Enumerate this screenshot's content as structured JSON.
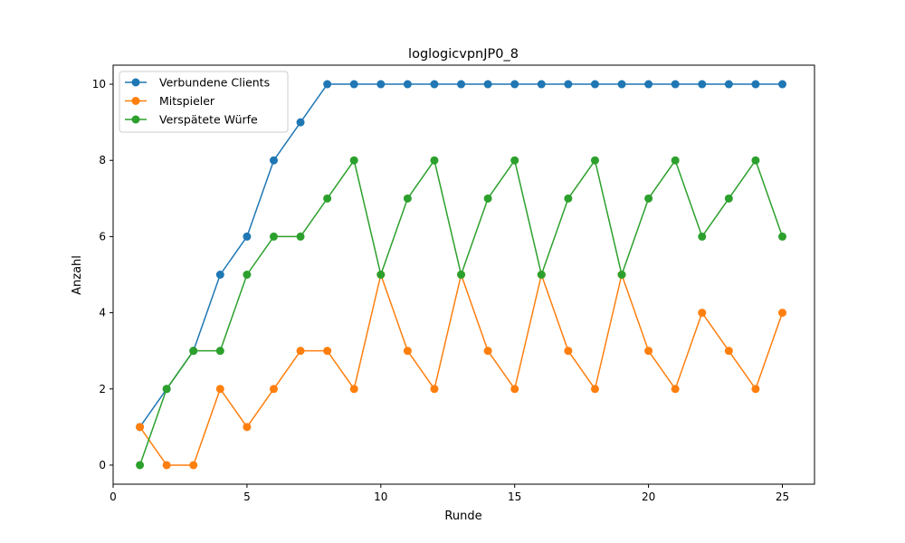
{
  "chart_data": {
    "type": "line",
    "title": "loglogicvpnJP0_8",
    "xlabel": "Runde",
    "ylabel": "Anzahl",
    "x": [
      1,
      2,
      3,
      4,
      5,
      6,
      7,
      8,
      9,
      10,
      11,
      12,
      13,
      14,
      15,
      16,
      17,
      18,
      19,
      20,
      21,
      22,
      23,
      24,
      25
    ],
    "xlim": [
      0,
      26.2
    ],
    "ylim": [
      -0.5,
      10.5
    ],
    "xticks": [
      0,
      5,
      10,
      15,
      20,
      25
    ],
    "yticks": [
      0,
      2,
      4,
      6,
      8,
      10
    ],
    "grid": false,
    "legend_position": "top-left",
    "series": [
      {
        "name": "Verbundene Clients",
        "color": "#1f77b4",
        "values": [
          1,
          2,
          3,
          5,
          6,
          8,
          9,
          10,
          10,
          10,
          10,
          10,
          10,
          10,
          10,
          10,
          10,
          10,
          10,
          10,
          10,
          10,
          10,
          10,
          10
        ]
      },
      {
        "name": "Mitspieler",
        "color": "#ff7f0e",
        "values": [
          1,
          0,
          0,
          2,
          1,
          2,
          3,
          3,
          2,
          5,
          3,
          2,
          5,
          3,
          2,
          5,
          3,
          2,
          5,
          3,
          2,
          4,
          3,
          2,
          4
        ]
      },
      {
        "name": "Verspätete Würfe",
        "color": "#2ca02c",
        "values": [
          0,
          2,
          3,
          3,
          5,
          6,
          6,
          7,
          8,
          5,
          7,
          8,
          5,
          7,
          8,
          5,
          7,
          8,
          5,
          7,
          8,
          6,
          7,
          8,
          6
        ]
      }
    ]
  }
}
